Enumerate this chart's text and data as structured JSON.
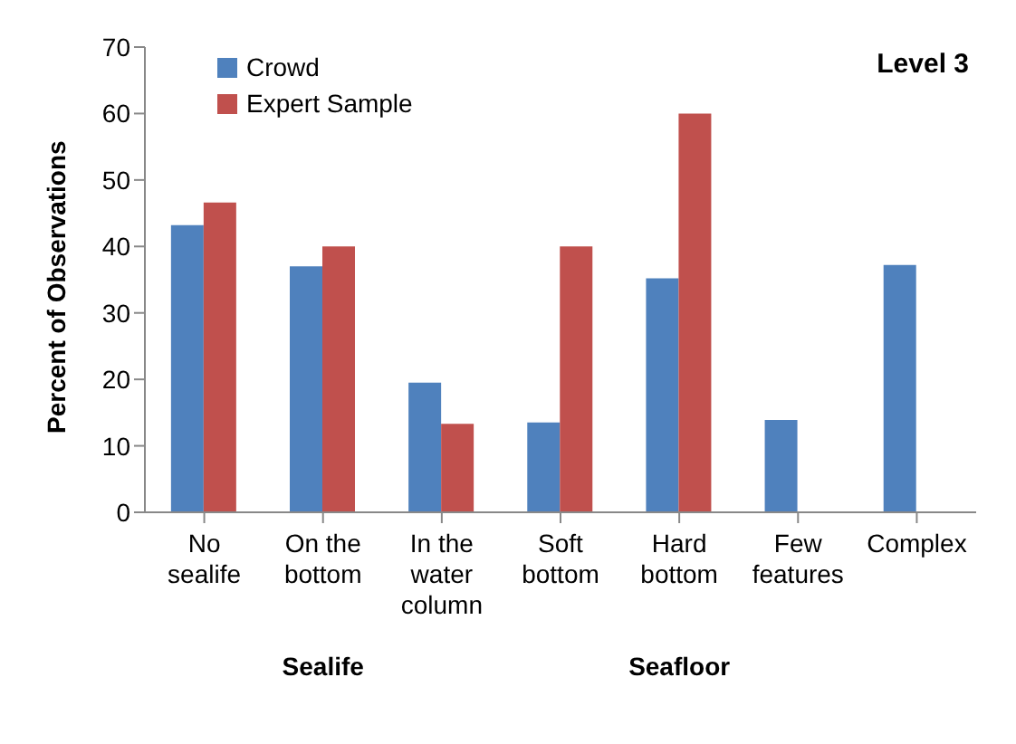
{
  "chart_data": {
    "type": "bar",
    "ylabel": "Percent of Observations",
    "categories": [
      "No sealife",
      "On the bottom",
      "In the water column",
      "Soft bottom",
      "Hard bottom",
      "Few features",
      "Complex"
    ],
    "series": [
      {
        "name": "Crowd",
        "color": "#4f81bd",
        "values": [
          43.2,
          37,
          19.5,
          13.5,
          35.2,
          13.9,
          37.2
        ]
      },
      {
        "name": "Expert Sample",
        "color": "#c0504d",
        "values": [
          46.6,
          40,
          13.3,
          40,
          60,
          null,
          null
        ]
      }
    ],
    "ylim": [
      0,
      70
    ],
    "yticks": [
      0,
      10,
      20,
      30,
      40,
      50,
      60,
      70
    ],
    "grid": false,
    "legend": "top left",
    "annotations": [
      "Level 3",
      "Sealife",
      "Seafloor"
    ]
  }
}
